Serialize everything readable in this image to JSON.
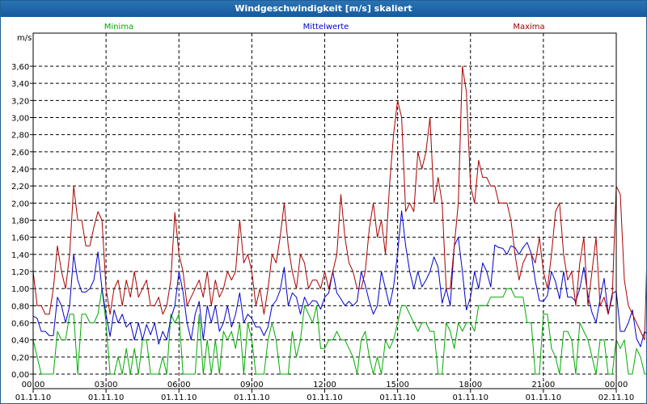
{
  "window": {
    "title": "Windgeschwindigkeit [m/s] skaliert"
  },
  "chart_data": {
    "type": "line",
    "title": "Windgeschwindigkeit [m/s] skaliert",
    "ylabel": "m/s",
    "xlabel": "",
    "ylim": [
      0,
      3.6
    ],
    "yticks": [
      "0,00",
      "0,20",
      "0,40",
      "0,60",
      "0,80",
      "1,00",
      "1,20",
      "1,40",
      "1,60",
      "1,80",
      "2,00",
      "2,20",
      "2,40",
      "2,60",
      "2,80",
      "3,00",
      "3,20",
      "3,40",
      "3,60"
    ],
    "xlim": [
      0,
      24
    ],
    "xticks": [
      {
        "hour": 0,
        "time": "00:00",
        "date": "01.11.10"
      },
      {
        "hour": 3,
        "time": "03:00",
        "date": "01.11.10"
      },
      {
        "hour": 6,
        "time": "06:00",
        "date": "01.11.10"
      },
      {
        "hour": 9,
        "time": "09:00",
        "date": "01.11.10"
      },
      {
        "hour": 12,
        "time": "12:00",
        "date": "01.11.10"
      },
      {
        "hour": 15,
        "time": "15:00",
        "date": "01.11.10"
      },
      {
        "hour": 18,
        "time": "18:00",
        "date": "01.11.10"
      },
      {
        "hour": 21,
        "time": "21:00",
        "date": "01.11.10"
      },
      {
        "hour": 24,
        "time": "00:00",
        "date": "02.11.10"
      }
    ],
    "grid": true,
    "legend_position": "top",
    "x_step_minutes": 10,
    "series": [
      {
        "name": "Minima",
        "color": "#00aa00",
        "values": [
          0.4,
          0.2,
          0.0,
          0.0,
          0.0,
          0.0,
          0.5,
          0.4,
          0.4,
          0.7,
          0.7,
          0.0,
          0.7,
          0.7,
          0.6,
          0.6,
          0.7,
          1.0,
          0.6,
          0.0,
          0.0,
          0.2,
          0.0,
          0.3,
          0.0,
          0.3,
          0.0,
          0.4,
          0.4,
          0.0,
          0.0,
          0.0,
          0.2,
          0.0,
          0.7,
          0.6,
          0.7,
          0.0,
          0.0,
          0.0,
          0.0,
          0.7,
          0.0,
          0.4,
          0.0,
          0.4,
          0.0,
          0.5,
          0.4,
          0.5,
          0.3,
          0.6,
          0.0,
          0.6,
          0.4,
          0.0,
          0.0,
          0.0,
          0.4,
          0.6,
          0.4,
          0.0,
          0.0,
          0.0,
          0.5,
          0.2,
          0.4,
          0.8,
          0.7,
          0.6,
          0.8,
          0.3,
          0.3,
          0.4,
          0.4,
          0.5,
          0.4,
          0.4,
          0.3,
          0.2,
          0.0,
          0.4,
          0.5,
          0.2,
          0.0,
          0.2,
          0.0,
          0.4,
          0.3,
          0.4,
          0.6,
          0.8,
          0.8,
          0.7,
          0.6,
          0.5,
          0.6,
          0.6,
          0.5,
          0.5,
          0.0,
          0.0,
          0.6,
          0.5,
          0.3,
          0.6,
          0.5,
          0.6,
          0.6,
          0.5,
          0.8,
          0.8,
          0.8,
          0.9,
          0.9,
          0.9,
          0.9,
          1.0,
          1.0,
          0.9,
          0.9,
          0.9,
          0.6,
          0.6,
          0.0,
          0.0,
          0.7,
          0.7,
          0.3,
          0.2,
          0.0,
          0.5,
          0.5,
          0.4,
          0.0,
          0.6,
          0.5,
          0.4,
          0.2,
          0.0,
          0.4,
          0.4,
          0.0,
          0.0,
          0.4,
          0.3,
          0.4,
          0.0,
          0.0,
          0.3,
          0.2,
          0.0,
          0.0,
          0.5,
          0.0,
          0.3
        ]
      },
      {
        "name": "Mittelwerte",
        "color": "#0000cc",
        "values": [
          0.68,
          0.65,
          0.5,
          0.5,
          0.45,
          0.45,
          0.9,
          0.8,
          0.6,
          0.8,
          1.4,
          1.1,
          0.96,
          0.96,
          1.0,
          1.1,
          1.43,
          1.0,
          0.7,
          0.44,
          0.75,
          0.6,
          0.7,
          0.55,
          0.6,
          0.4,
          0.6,
          0.4,
          0.58,
          0.46,
          0.6,
          0.35,
          0.5,
          0.4,
          0.65,
          0.8,
          1.2,
          0.96,
          0.6,
          0.4,
          0.7,
          0.85,
          0.4,
          0.8,
          0.6,
          0.8,
          0.5,
          0.6,
          0.8,
          0.55,
          0.7,
          0.95,
          0.6,
          0.7,
          0.65,
          0.55,
          0.55,
          0.45,
          0.55,
          0.8,
          0.86,
          0.98,
          1.25,
          0.8,
          0.95,
          0.9,
          0.7,
          0.9,
          0.8,
          0.86,
          0.85,
          0.76,
          0.9,
          0.95,
          1.2,
          0.95,
          0.88,
          0.8,
          0.85,
          0.8,
          0.85,
          1.2,
          1.04,
          0.85,
          0.7,
          0.8,
          1.2,
          1.0,
          0.8,
          1.02,
          1.41,
          1.91,
          1.5,
          1.2,
          1.0,
          1.2,
          1.02,
          1.1,
          1.2,
          1.37,
          1.25,
          0.83,
          1.0,
          0.8,
          1.5,
          1.6,
          1.2,
          0.75,
          0.9,
          1.2,
          1.0,
          1.3,
          1.2,
          1.02,
          1.51,
          1.48,
          1.47,
          1.4,
          1.5,
          1.48,
          1.4,
          1.48,
          1.54,
          1.41,
          1.09,
          0.86,
          0.85,
          0.92,
          1.2,
          1.08,
          0.88,
          1.2,
          0.9,
          0.9,
          0.85,
          1.0,
          1.25,
          0.92,
          0.72,
          0.6,
          0.88,
          1.12,
          0.7,
          0.94,
          0.97,
          0.5,
          0.5,
          0.6,
          0.75,
          0.42,
          0.32,
          0.5,
          0.45,
          0.38,
          0.32,
          0.15,
          0.5,
          1.36,
          0.9,
          0.46,
          0.58
        ]
      },
      {
        "name": "Maxima",
        "color": "#aa0000",
        "values": [
          1.2,
          0.8,
          0.8,
          0.7,
          0.7,
          1.0,
          1.5,
          1.2,
          1.0,
          1.4,
          2.2,
          1.8,
          1.8,
          1.5,
          1.5,
          1.72,
          1.9,
          1.8,
          1.0,
          0.7,
          1.0,
          1.1,
          0.8,
          1.1,
          0.9,
          1.2,
          0.9,
          1.0,
          1.1,
          0.8,
          0.8,
          0.9,
          0.7,
          0.8,
          1.1,
          1.89,
          1.4,
          1.2,
          0.8,
          0.9,
          1.0,
          1.1,
          0.9,
          1.2,
          0.8,
          1.1,
          0.9,
          1.0,
          1.2,
          1.1,
          1.2,
          1.8,
          1.3,
          1.4,
          1.2,
          0.8,
          1.0,
          0.7,
          1.0,
          1.4,
          1.3,
          1.6,
          2.0,
          1.5,
          1.2,
          1.0,
          1.4,
          1.3,
          1.0,
          1.1,
          1.1,
          1.0,
          1.2,
          1.0,
          1.2,
          1.4,
          2.1,
          1.6,
          1.3,
          1.2,
          1.0,
          1.0,
          1.2,
          1.7,
          2.0,
          1.6,
          1.8,
          1.4,
          2.2,
          2.8,
          3.2,
          3.0,
          1.9,
          2.0,
          1.9,
          2.6,
          2.4,
          2.6,
          3.0,
          2.0,
          2.3,
          2.0,
          1.0,
          1.0,
          1.5,
          2.0,
          3.6,
          3.3,
          2.2,
          2.0,
          2.5,
          2.3,
          2.3,
          2.2,
          2.2,
          2.0,
          2.0,
          2.0,
          1.8,
          1.4,
          1.1,
          1.3,
          1.4,
          1.4,
          1.3,
          1.6,
          1.2,
          1.0,
          1.4,
          1.9,
          2.0,
          1.4,
          1.1,
          1.2,
          0.8,
          1.3,
          1.6,
          0.8,
          1.2,
          1.6,
          0.8,
          0.9,
          0.7,
          0.9,
          2.2,
          2.1,
          1.1,
          0.8,
          0.7,
          0.6,
          0.5,
          0.4,
          2.1,
          2.5,
          1.1,
          0.7,
          0.8
        ]
      }
    ]
  }
}
